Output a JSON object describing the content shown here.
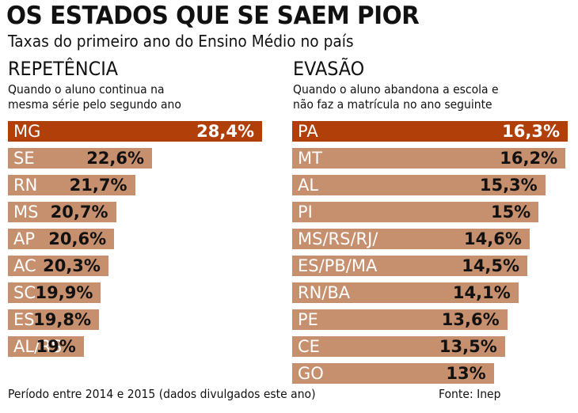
{
  "header": {
    "title": "OS ESTADOS QUE SE SAEM PIOR",
    "subtitle": "Taxas do primeiro ano do Ensino Médio no país"
  },
  "colors": {
    "highlight": "#b13f0a",
    "bar": "#c6906f",
    "highlight_value_text": "#ffffff",
    "value_text": "#111111",
    "label_text": "#ffffff"
  },
  "footer": {
    "period": "Período entre 2014 e 2015 (dados divulgados este ano)",
    "source": "Fonte: Inep"
  },
  "chart_data": [
    {
      "type": "bar",
      "orientation": "horizontal",
      "title": "REPETÊNCIA",
      "description": [
        "Quando o aluno continua na",
        "mesma série pelo segundo ano"
      ],
      "categories": [
        "MG",
        "SE",
        "RN",
        "MS",
        "AP",
        "AC",
        "SC",
        "ES",
        "AL/RS"
      ],
      "values": [
        28.4,
        22.6,
        21.7,
        20.7,
        20.6,
        20.3,
        19.9,
        19.8,
        19
      ],
      "labels": [
        "28,4%",
        "22,6%",
        "21,7%",
        "20,7%",
        "20,6%",
        "20,3%",
        "19,9%",
        "19,8%",
        "19%"
      ],
      "highlight_index": 0,
      "unit": "%",
      "xlim": [
        0,
        28.4
      ]
    },
    {
      "type": "bar",
      "orientation": "horizontal",
      "title": "EVASÃO",
      "description": [
        "Quando o aluno abandona a escola e",
        "não faz a matrícula no ano seguinte"
      ],
      "categories": [
        "PA",
        "MT",
        "AL",
        "PI",
        "MS/RS/RJ/",
        "ES/PB/MA",
        "RN/BA",
        "PE",
        "CE",
        "GO"
      ],
      "values": [
        16.3,
        16.2,
        15.3,
        15,
        14.6,
        14.5,
        14.1,
        13.6,
        13.5,
        13
      ],
      "labels": [
        "16,3%",
        "16,2%",
        "15,3%",
        "15%",
        "14,6%",
        "14,5%",
        "14,1%",
        "13,6%",
        "13,5%",
        "13%"
      ],
      "highlight_index": 0,
      "unit": "%",
      "xlim": [
        0,
        16.3
      ]
    }
  ]
}
